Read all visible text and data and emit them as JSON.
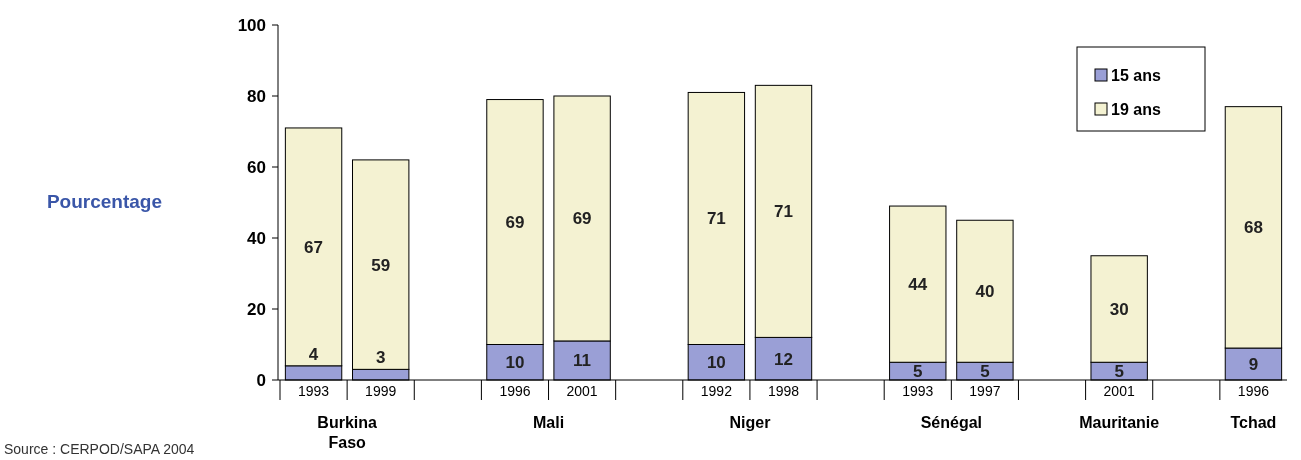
{
  "chart_data": {
    "type": "bar",
    "stacked": true,
    "ylabel": "Pourcentage",
    "categories": [
      "1993",
      "1999",
      null,
      "1996",
      "2001",
      null,
      "1992",
      "1998",
      null,
      "1993",
      "1997",
      null,
      "2001",
      null,
      "1996"
    ],
    "series": [
      {
        "name": "15 ans",
        "color": "#9a9fd6",
        "values": [
          4,
          3,
          null,
          10,
          11,
          null,
          10,
          12,
          null,
          5,
          5,
          null,
          5,
          null,
          9
        ]
      },
      {
        "name": "19 ans",
        "color": "#f4f2d2",
        "values": [
          67,
          59,
          null,
          69,
          69,
          null,
          71,
          71,
          null,
          44,
          40,
          null,
          30,
          null,
          68
        ]
      }
    ],
    "ylim": [
      0,
      100
    ],
    "yticks": [
      0,
      20,
      40,
      60,
      80,
      100
    ],
    "data_labels": true,
    "legend": "top right",
    "grid": false,
    "annotations": [
      "Burkina Faso",
      "Mali",
      "Niger",
      "Sénégal",
      "Mauritanie",
      "Tchad",
      "Source : CERPOD/SAPA 2004"
    ]
  }
}
